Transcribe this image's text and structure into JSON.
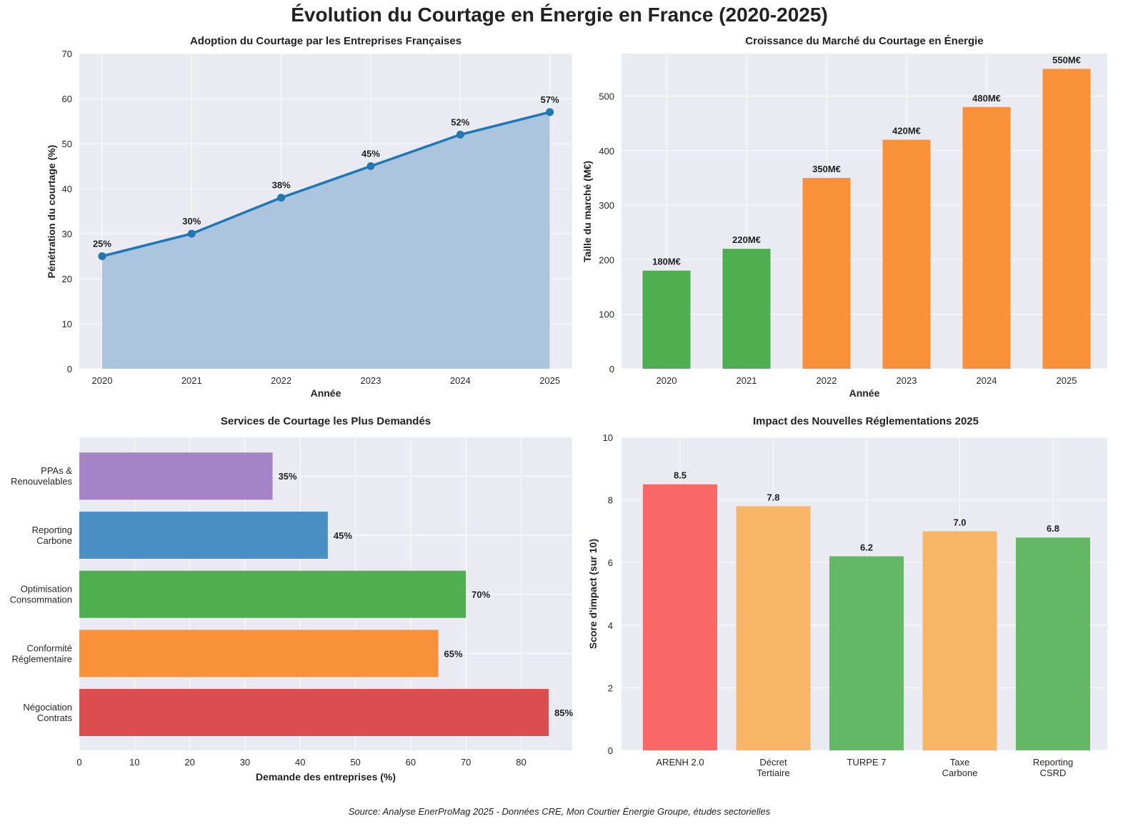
{
  "suptitle": "Évolution du Courtage en Énergie en France (2020-2025)",
  "source": "Source: Analyse EnerProMag 2025 - Données CRE, Mon Courtier Énergie Groupe, études sectorielles",
  "chart_data": [
    {
      "type": "area",
      "title": "Adoption du Courtage par les Entreprises Françaises",
      "xlabel": "Année",
      "ylabel": "Pénétration du courtage (%)",
      "x": [
        2020,
        2021,
        2022,
        2023,
        2024,
        2025
      ],
      "values": [
        25,
        30,
        38,
        45,
        52,
        57
      ],
      "data_labels": [
        "25%",
        "30%",
        "38%",
        "45%",
        "52%",
        "57%"
      ],
      "ylim": [
        0,
        70
      ],
      "yticks": [
        0,
        10,
        20,
        30,
        40,
        50,
        60,
        70
      ],
      "grid": true,
      "colors": {
        "line": "#1f77b4",
        "fill": "#abc5df"
      }
    },
    {
      "type": "bar",
      "title": "Croissance du Marché du Courtage en Énergie",
      "xlabel": "Année",
      "ylabel": "Taille du marché (M€)",
      "categories": [
        "2020",
        "2021",
        "2022",
        "2023",
        "2024",
        "2025"
      ],
      "values": [
        180,
        220,
        350,
        420,
        480,
        550
      ],
      "data_labels": [
        "180M€",
        "220M€",
        "350M€",
        "420M€",
        "480M€",
        "550M€"
      ],
      "ylim": [
        0,
        578
      ],
      "yticks": [
        0,
        100,
        200,
        300,
        400,
        500
      ],
      "grid": true,
      "colors": [
        "#4fae4f",
        "#4fae4f",
        "#f9913b",
        "#f9913b",
        "#f9913b",
        "#f9913b"
      ]
    },
    {
      "type": "bar",
      "orientation": "horizontal",
      "title": "Services de Courtage les Plus Demandés",
      "xlabel": "Demande des entreprises (%)",
      "ylabel": "",
      "categories": [
        "Négociation\nContrats",
        "Conformité\nRéglementaire",
        "Optimisation\nConsommation",
        "Reporting\nCarbone",
        "PPAs &\nRenouvelables"
      ],
      "values": [
        85,
        65,
        70,
        45,
        35
      ],
      "data_labels": [
        "85%",
        "65%",
        "70%",
        "45%",
        "35%"
      ],
      "xlim": [
        0,
        89.25
      ],
      "xticks": [
        0,
        10,
        20,
        30,
        40,
        50,
        60,
        70,
        80
      ],
      "grid": true,
      "colors": [
        "#db4d4e",
        "#f9913b",
        "#4fae4f",
        "#4a8fc3",
        "#a483c7"
      ]
    },
    {
      "type": "bar",
      "title": "Impact des Nouvelles Réglementations 2025",
      "xlabel": "",
      "ylabel": "Score d'impact (sur 10)",
      "categories": [
        "ARENH 2.0",
        "Décret\nTertiaire",
        "TURPE 7",
        "Taxe\nCarbone",
        "Reporting\nCSRD"
      ],
      "values": [
        8.5,
        7.8,
        6.2,
        7.0,
        6.8
      ],
      "data_labels": [
        "8.5",
        "7.8",
        "6.2",
        "7.0",
        "6.8"
      ],
      "ylim": [
        0,
        10
      ],
      "yticks": [
        0,
        2,
        4,
        6,
        8,
        10
      ],
      "grid": true,
      "colors": [
        "#f96767",
        "#f8b567",
        "#64b764",
        "#f8b567",
        "#64b764"
      ]
    }
  ]
}
